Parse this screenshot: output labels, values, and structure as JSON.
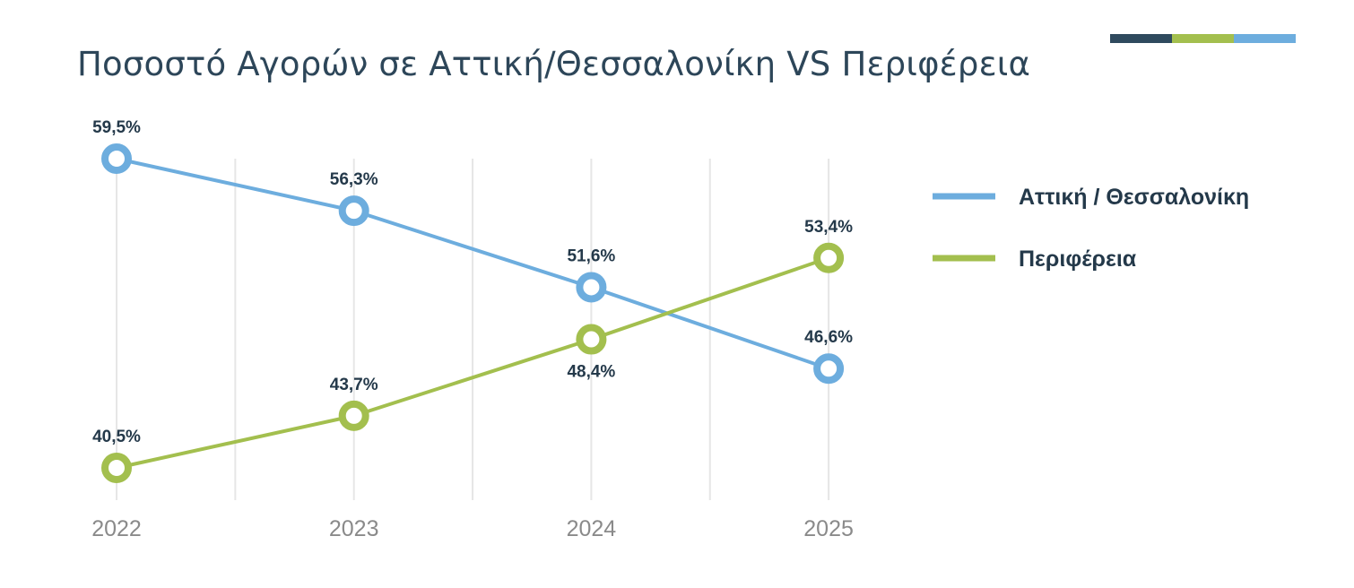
{
  "colors": {
    "accent_dark": "#2f4a5e",
    "accent_green": "#a3bf4e",
    "accent_blue": "#6dadde",
    "grid": "#e6e6e6",
    "label": "#24394a",
    "tick": "#8a8a8a"
  },
  "chart_data": {
    "type": "line",
    "title": "Ποσοστό Αγορών σε Αττική/Θεσσαλονίκη VS Περιφέρεια",
    "categories": [
      "2022",
      "2023",
      "2024",
      "2025"
    ],
    "series": [
      {
        "name": "Αττική / Θεσσαλονίκη",
        "color": "#6dadde",
        "values": [
          59.5,
          56.3,
          51.6,
          46.6
        ],
        "labels": [
          "59,5%",
          "56,3%",
          "51,6%",
          "46,6%"
        ]
      },
      {
        "name": "Περιφέρεια",
        "color": "#a3bf4e",
        "values": [
          40.5,
          43.7,
          48.4,
          53.4
        ],
        "labels": [
          "40,5%",
          "43,7%",
          "48,4%",
          "53,4%"
        ]
      }
    ],
    "ylim": [
      34.0,
      60.5
    ],
    "grid": "vertical",
    "legend": "right"
  }
}
